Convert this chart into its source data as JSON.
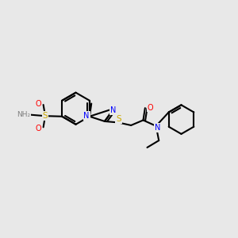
{
  "bg_color": "#e8e8e8",
  "bond_color": "#000000",
  "bond_width": 1.5,
  "atom_colors": {
    "N": "#0000ff",
    "S": "#ccaa00",
    "O": "#ff0000",
    "H": "#808080"
  },
  "font_size": 7.0,
  "fig_size": [
    3.0,
    3.0
  ],
  "dpi": 100,
  "xlim": [
    0,
    10
  ],
  "ylim": [
    0,
    10
  ]
}
